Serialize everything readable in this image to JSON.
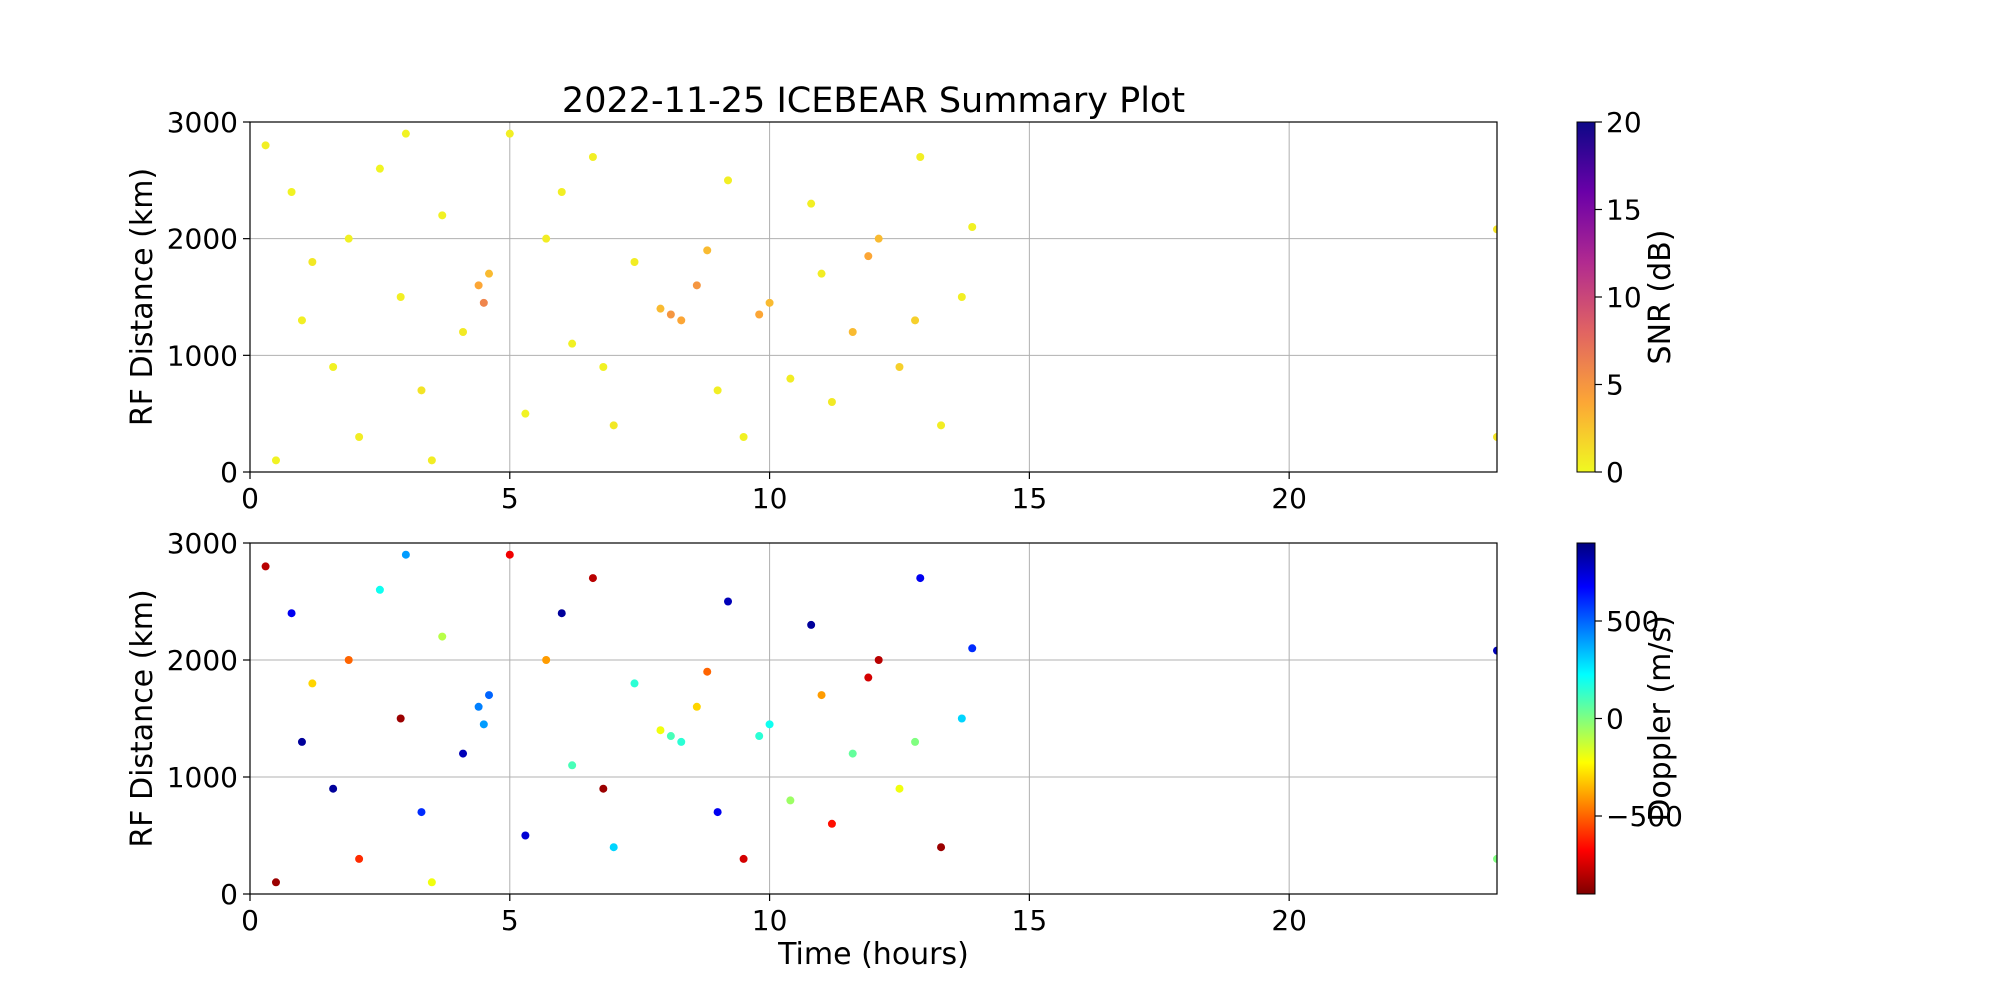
{
  "chart_data": [
    {
      "type": "scatter",
      "title": "2022-11-25 ICEBEAR Summary Plot",
      "ylabel": "RF Distance (km)",
      "xlim": [
        0,
        24
      ],
      "ylim": [
        0,
        3000
      ],
      "xticks": [
        0,
        5,
        10,
        15,
        20
      ],
      "yticks": [
        0,
        1000,
        2000,
        3000
      ],
      "grid": true,
      "x": [
        0.3,
        0.8,
        1.2,
        1.6,
        2.1,
        2.5,
        2.9,
        3.3,
        3.7,
        4.1,
        4.4,
        4.5,
        4.6,
        5.0,
        5.3,
        5.7,
        6.2,
        6.6,
        7.0,
        7.4,
        7.9,
        8.1,
        8.3,
        8.6,
        8.8,
        9.2,
        9.5,
        9.8,
        10.0,
        10.4,
        10.8,
        11.2,
        11.6,
        11.9,
        12.1,
        12.5,
        12.9,
        13.3,
        13.7,
        13.9,
        0.5,
        1.0,
        1.9,
        3.0,
        3.5,
        6.0,
        6.8,
        9.0,
        11.0,
        12.8,
        24,
        24
      ],
      "y": [
        2800,
        2400,
        1800,
        900,
        300,
        2600,
        1500,
        700,
        2200,
        1200,
        1600,
        1450,
        1700,
        2900,
        500,
        2000,
        1100,
        2700,
        400,
        1800,
        1400,
        1350,
        1300,
        1600,
        1900,
        2500,
        300,
        1350,
        1450,
        800,
        2300,
        600,
        1200,
        1850,
        2000,
        900,
        2700,
        400,
        1500,
        2100,
        100,
        1300,
        2000,
        2900,
        100,
        2400,
        900,
        700,
        1700,
        1300,
        2080,
        300
      ],
      "c": [
        0.5,
        0.3,
        0.8,
        0.4,
        0.6,
        0.2,
        0.5,
        1.0,
        0.4,
        0.7,
        4,
        6,
        3,
        0.5,
        0.3,
        0.6,
        0.4,
        0.5,
        0.8,
        0.6,
        3,
        5,
        4,
        5,
        3,
        0.5,
        0.4,
        4,
        3,
        0.6,
        0.5,
        0.7,
        3,
        4,
        3,
        2,
        0.5,
        0.6,
        0.5,
        0.4,
        0.3,
        0.5,
        0.4,
        0.3,
        0.6,
        0.5,
        0.4,
        0.5,
        0.6,
        2,
        1,
        1
      ],
      "colorbar": {
        "label": "SNR (dB)",
        "lim": [
          0,
          20
        ],
        "ticks": [
          0,
          5,
          10,
          15,
          20
        ],
        "colormap": [
          "#f0f921",
          "#fca636",
          "#e16462",
          "#b12a90",
          "#6a00a8",
          "#0d0887"
        ]
      }
    },
    {
      "type": "scatter",
      "xlabel": "Time (hours)",
      "ylabel": "RF Distance (km)",
      "xlim": [
        0,
        24
      ],
      "ylim": [
        0,
        3000
      ],
      "xticks": [
        0,
        5,
        10,
        15,
        20
      ],
      "yticks": [
        0,
        1000,
        2000,
        3000
      ],
      "grid": true,
      "x": [
        0.3,
        0.8,
        1.2,
        1.6,
        2.1,
        2.5,
        2.9,
        3.3,
        3.7,
        4.1,
        4.4,
        4.5,
        4.6,
        5.0,
        5.3,
        5.7,
        6.2,
        6.6,
        7.0,
        7.4,
        7.9,
        8.1,
        8.3,
        8.6,
        8.8,
        9.2,
        9.5,
        9.8,
        10.0,
        10.4,
        10.8,
        11.2,
        11.6,
        11.9,
        12.1,
        12.5,
        12.9,
        13.3,
        13.7,
        13.9,
        0.5,
        1.0,
        1.9,
        3.0,
        3.5,
        6.0,
        6.8,
        9.0,
        11.0,
        12.8,
        24,
        24
      ],
      "y": [
        2800,
        2400,
        1800,
        900,
        300,
        2600,
        1500,
        700,
        2200,
        1200,
        1600,
        1450,
        1700,
        2900,
        500,
        2000,
        1100,
        2700,
        400,
        1800,
        1400,
        1350,
        1300,
        1600,
        1900,
        2500,
        300,
        1350,
        1450,
        800,
        2300,
        600,
        1200,
        1850,
        2000,
        900,
        2700,
        400,
        1500,
        2100,
        100,
        1300,
        2000,
        2900,
        100,
        2400,
        900,
        700,
        1700,
        1300,
        2080,
        300
      ],
      "c": [
        -800,
        700,
        -300,
        850,
        -600,
        200,
        -850,
        600,
        -100,
        800,
        450,
        400,
        500,
        -700,
        750,
        -400,
        100,
        -800,
        300,
        150,
        -200,
        100,
        150,
        -300,
        -500,
        800,
        -750,
        150,
        200,
        -50,
        850,
        -650,
        50,
        -750,
        -800,
        -200,
        700,
        -850,
        300,
        600,
        -850,
        850,
        -500,
        400,
        -200,
        850,
        -850,
        700,
        -400,
        0,
        800,
        0
      ],
      "colorbar": {
        "label": "Doppler (m/s)",
        "lim": [
          -900,
          900
        ],
        "ticks": [
          {
            "value": -500,
            "label": "−500"
          },
          0,
          500
        ],
        "colormap": [
          "#7f0000",
          "#ff0000",
          "#ff8000",
          "#ffff00",
          "#80ff80",
          "#00ffff",
          "#0080ff",
          "#0000ff",
          "#00007f"
        ]
      }
    }
  ]
}
